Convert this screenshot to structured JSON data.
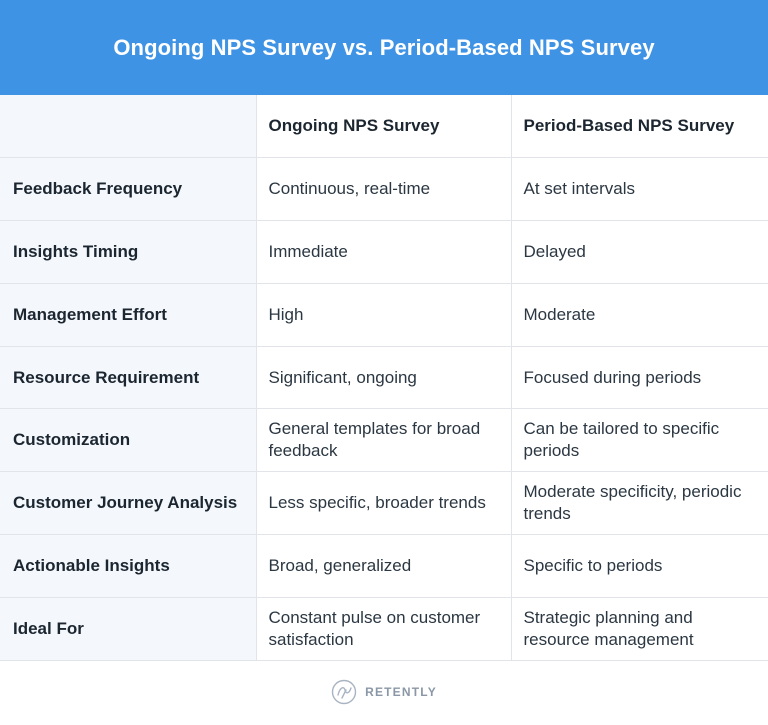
{
  "title": "Ongoing NPS Survey vs. Period-Based NPS Survey",
  "table": {
    "columns": [
      "",
      "Ongoing NPS Survey",
      "Period-Based NPS Survey"
    ],
    "rows": [
      {
        "label": "Feedback Frequency",
        "ongoing": "Continuous, real-time",
        "period": "At set intervals"
      },
      {
        "label": "Insights Timing",
        "ongoing": "Immediate",
        "period": "Delayed"
      },
      {
        "label": "Management Effort",
        "ongoing": "High",
        "period": "Moderate"
      },
      {
        "label": "Resource Requirement",
        "ongoing": "Significant, ongoing",
        "period": "Focused during periods"
      },
      {
        "label": "Customization",
        "ongoing": "General templates for broad feedback",
        "period": "Can be tailored to specific periods"
      },
      {
        "label": "Customer Journey Analysis",
        "ongoing": "Less specific, broader trends",
        "period": "Moderate specificity, periodic trends"
      },
      {
        "label": "Actionable Insights",
        "ongoing": "Broad, generalized",
        "period": "Specific to periods"
      },
      {
        "label": "Ideal For",
        "ongoing": "Constant pulse on customer satisfaction",
        "period": "Strategic planning and resource management"
      }
    ]
  },
  "footer": {
    "brand": "RETENTLY",
    "logo_icon": "retently-logo-icon"
  },
  "colors": {
    "header_bg": "#3f93e5",
    "label_bg": "#f4f8fc",
    "border": "#e1e5e9"
  }
}
